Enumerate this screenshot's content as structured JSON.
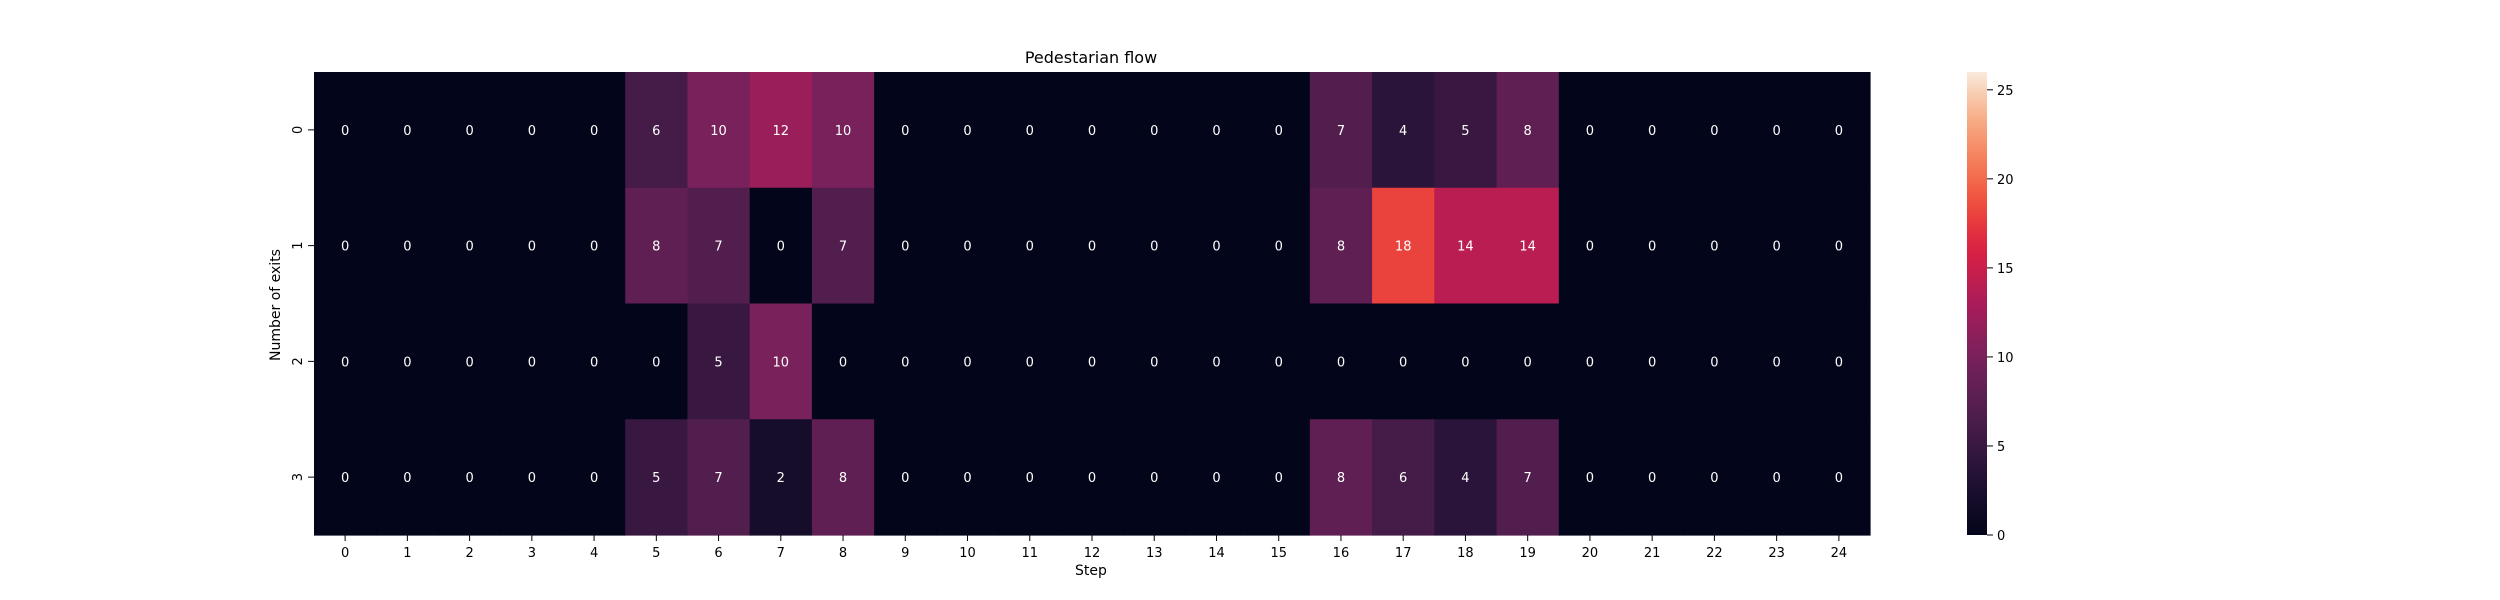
{
  "chart_data": {
    "type": "heatmap",
    "title": "Pedestarian flow",
    "xlabel": "Step",
    "ylabel": "Number of exits",
    "x_categories": [
      "0",
      "1",
      "2",
      "3",
      "4",
      "5",
      "6",
      "7",
      "8",
      "9",
      "10",
      "11",
      "12",
      "13",
      "14",
      "15",
      "16",
      "17",
      "18",
      "19",
      "20",
      "21",
      "22",
      "23",
      "24"
    ],
    "y_categories": [
      "0",
      "1",
      "2",
      "3"
    ],
    "values": [
      [
        0,
        0,
        0,
        0,
        0,
        6,
        10,
        12,
        10,
        0,
        0,
        0,
        0,
        0,
        0,
        0,
        7,
        4,
        5,
        8,
        0,
        0,
        0,
        0,
        0
      ],
      [
        0,
        0,
        0,
        0,
        0,
        8,
        7,
        0,
        7,
        0,
        0,
        0,
        0,
        0,
        0,
        0,
        8,
        18,
        14,
        14,
        0,
        0,
        0,
        0,
        0
      ],
      [
        0,
        0,
        0,
        0,
        0,
        0,
        5,
        10,
        0,
        0,
        0,
        0,
        0,
        0,
        0,
        0,
        0,
        0,
        0,
        0,
        0,
        0,
        0,
        0,
        0
      ],
      [
        0,
        0,
        0,
        0,
        0,
        5,
        7,
        2,
        8,
        0,
        0,
        0,
        0,
        0,
        0,
        0,
        8,
        6,
        4,
        7,
        0,
        0,
        0,
        0,
        0
      ]
    ],
    "colorbar": {
      "min": 0,
      "max": 26,
      "ticks": [
        0,
        5,
        10,
        15,
        20,
        25
      ],
      "colormap": "rocket"
    },
    "annotations": true,
    "grid": false
  }
}
